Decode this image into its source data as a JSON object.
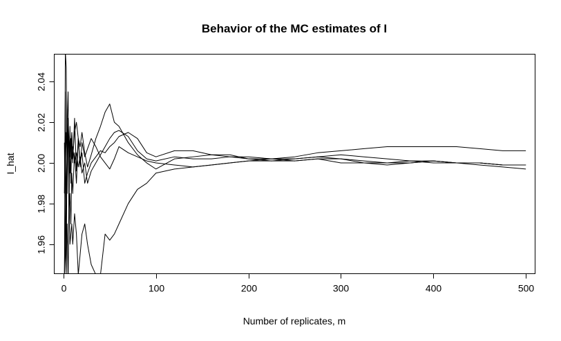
{
  "chart_data": {
    "type": "line",
    "title": "Behavior of the MC estimates of I",
    "xlabel": "Number of replicates, m",
    "ylabel": "I_hat",
    "xlim": [
      -10,
      510
    ],
    "ylim": [
      1.9455,
      2.0535
    ],
    "xticks": [
      0,
      100,
      200,
      300,
      400,
      500
    ],
    "xtick_labels": [
      "0",
      "100",
      "200",
      "300",
      "400",
      "500"
    ],
    "yticks": [
      1.96,
      1.98,
      2.0,
      2.02,
      2.04
    ],
    "ytick_labels": [
      "1.96",
      "1.98",
      "2.00",
      "2.02",
      "2.04"
    ],
    "grid": false,
    "legend": "none",
    "line_color": "#000000",
    "series": [
      {
        "x": [
          1,
          2,
          3,
          4,
          5,
          6,
          7,
          8,
          9,
          10,
          12,
          14,
          16,
          18,
          20,
          23,
          26,
          30,
          35,
          40,
          45,
          50,
          55,
          60,
          70,
          80,
          90,
          100,
          120,
          140,
          160,
          180,
          200,
          225,
          250,
          275,
          300,
          325,
          350,
          375,
          400,
          425,
          450,
          475,
          500
        ],
        "y": [
          1.935,
          2.055,
          2.047,
          1.985,
          2.022,
          1.978,
          2.018,
          1.99,
          2.015,
          2.0,
          2.022,
          1.996,
          2.012,
          2.008,
          2.015,
          2.005,
          1.998,
          2.004,
          2.012,
          2.018,
          2.025,
          2.029,
          2.02,
          2.018,
          2.01,
          2.004,
          2.0,
          1.997,
          2.002,
          2.003,
          2.004,
          2.004,
          2.002,
          2.002,
          2.003,
          2.005,
          2.006,
          2.007,
          2.008,
          2.008,
          2.008,
          2.008,
          2.007,
          2.006,
          2.006
        ]
      },
      {
        "x": [
          1,
          2,
          3,
          4,
          5,
          6,
          7,
          8,
          9,
          10,
          12,
          14,
          16,
          18,
          20,
          23,
          26,
          30,
          35,
          40,
          45,
          50,
          55,
          60,
          70,
          80,
          90,
          100,
          120,
          140,
          160,
          180,
          200,
          225,
          250,
          275,
          300,
          325,
          350,
          375,
          400,
          425,
          450,
          475,
          500
        ],
        "y": [
          1.94,
          1.962,
          1.99,
          2.005,
          2.015,
          2.01,
          2.003,
          2.012,
          2.002,
          2.008,
          2.0,
          2.005,
          1.998,
          2.003,
          1.995,
          2.0,
          1.99,
          1.996,
          2.0,
          2.004,
          2.008,
          2.012,
          2.015,
          2.016,
          2.013,
          2.006,
          2.002,
          2.001,
          2.003,
          2.002,
          2.002,
          2.003,
          2.002,
          2.001,
          2.001,
          2.002,
          2.0,
          2.0,
          2.0,
          2.001,
          2.0,
          2.0,
          2.0,
          1.999,
          1.999
        ]
      },
      {
        "x": [
          1,
          2,
          3,
          4,
          5,
          6,
          7,
          8,
          9,
          10,
          12,
          14,
          16,
          18,
          20,
          23,
          26,
          30,
          35,
          40,
          45,
          50,
          55,
          60,
          70,
          80,
          90,
          100,
          120,
          140,
          160,
          180,
          200,
          225,
          250,
          275,
          300,
          325,
          350,
          375,
          400,
          425,
          450,
          475,
          500
        ],
        "y": [
          1.945,
          1.995,
          2.015,
          2.005,
          2.022,
          2.01,
          1.995,
          2.008,
          2.015,
          2.003,
          2.015,
          2.02,
          2.012,
          2.0,
          2.005,
          1.99,
          1.995,
          2.0,
          2.003,
          2.006,
          2.005,
          2.008,
          2.01,
          2.013,
          2.015,
          2.012,
          2.005,
          2.003,
          2.006,
          2.006,
          2.004,
          2.003,
          2.003,
          2.002,
          2.002,
          2.003,
          2.004,
          2.003,
          2.002,
          2.001,
          2.001,
          2.0,
          2.0,
          1.999,
          1.999
        ]
      },
      {
        "x": [
          1,
          2,
          3,
          4,
          5,
          6,
          7,
          8,
          9,
          10,
          12,
          14,
          16,
          18,
          20,
          23,
          26,
          30,
          35,
          40,
          45,
          50,
          55,
          60,
          70,
          80,
          90,
          100,
          120,
          140,
          160,
          180,
          200,
          225,
          250,
          275,
          300,
          325,
          350,
          375,
          400,
          425,
          450,
          475,
          500
        ],
        "y": [
          1.985,
          2.035,
          1.95,
          1.97,
          1.94,
          1.985,
          1.96,
          1.965,
          1.97,
          1.96,
          1.975,
          1.965,
          1.945,
          1.955,
          1.965,
          1.97,
          1.96,
          1.95,
          1.945,
          1.945,
          1.965,
          1.962,
          1.965,
          1.97,
          1.98,
          1.987,
          1.99,
          1.995,
          1.997,
          1.998,
          1.999,
          2.0,
          2.001,
          2.002,
          2.001,
          2.002,
          2.002,
          2.001,
          2.0,
          2.0,
          2.001,
          2.0,
          2.0,
          1.999,
          1.999
        ]
      },
      {
        "x": [
          1,
          2,
          3,
          4,
          5,
          6,
          7,
          8,
          9,
          10,
          12,
          14,
          16,
          18,
          20,
          23,
          26,
          30,
          35,
          40,
          45,
          50,
          55,
          60,
          70,
          80,
          90,
          100,
          120,
          140,
          160,
          180,
          200,
          225,
          250,
          275,
          300,
          325,
          350,
          375,
          400,
          425,
          450,
          475,
          500
        ],
        "y": [
          2.01,
          1.96,
          1.945,
          2.02,
          2.035,
          1.975,
          1.985,
          1.97,
          1.995,
          1.985,
          2.005,
          1.99,
          2.012,
          1.998,
          2.01,
          2.003,
          2.007,
          2.012,
          2.008,
          2.003,
          2.0,
          1.997,
          2.002,
          2.008,
          2.005,
          2.003,
          2.001,
          2.0,
          1.999,
          1.998,
          1.999,
          2.0,
          2.001,
          2.001,
          2.002,
          2.003,
          2.002,
          2.0,
          1.999,
          2.0,
          2.001,
          2.0,
          1.999,
          1.998,
          1.997
        ]
      }
    ]
  }
}
